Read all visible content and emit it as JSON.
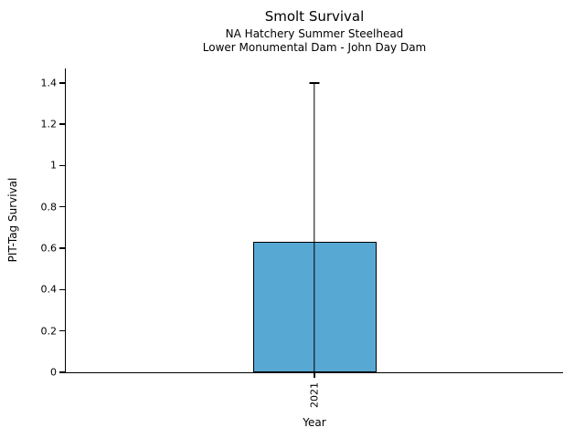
{
  "chart": {
    "title": "Smolt Survival",
    "subtitle1": "NA Hatchery Summer Steelhead",
    "subtitle2": "Lower Monumental Dam - John Day Dam",
    "xlabel": "Year",
    "ylabel": "PIT-Tag Survival"
  },
  "chart_data": {
    "type": "bar",
    "title": "Smolt Survival",
    "subtitle": [
      "NA Hatchery Summer Steelhead",
      "Lower Monumental Dam - John Day Dam"
    ],
    "xlabel": "Year",
    "ylabel": "PIT-Tag Survival",
    "categories": [
      "2021"
    ],
    "values": [
      0.63
    ],
    "error_low": [
      0
    ],
    "error_high": [
      1.4
    ],
    "yticks": [
      0,
      0.2,
      0.4,
      0.6,
      0.8,
      1,
      1.2,
      1.4
    ],
    "ytick_labels": [
      "0",
      "0.2",
      "0.4",
      "0.6",
      "0.8",
      "1",
      "1.2",
      "1.4"
    ],
    "ylim": [
      0,
      1.47
    ],
    "grid": false,
    "legend": null,
    "bar_color": "#58a8d4",
    "bar_edge_color": "#000000",
    "error_color": "#000000",
    "background_color": "#ffffff"
  }
}
